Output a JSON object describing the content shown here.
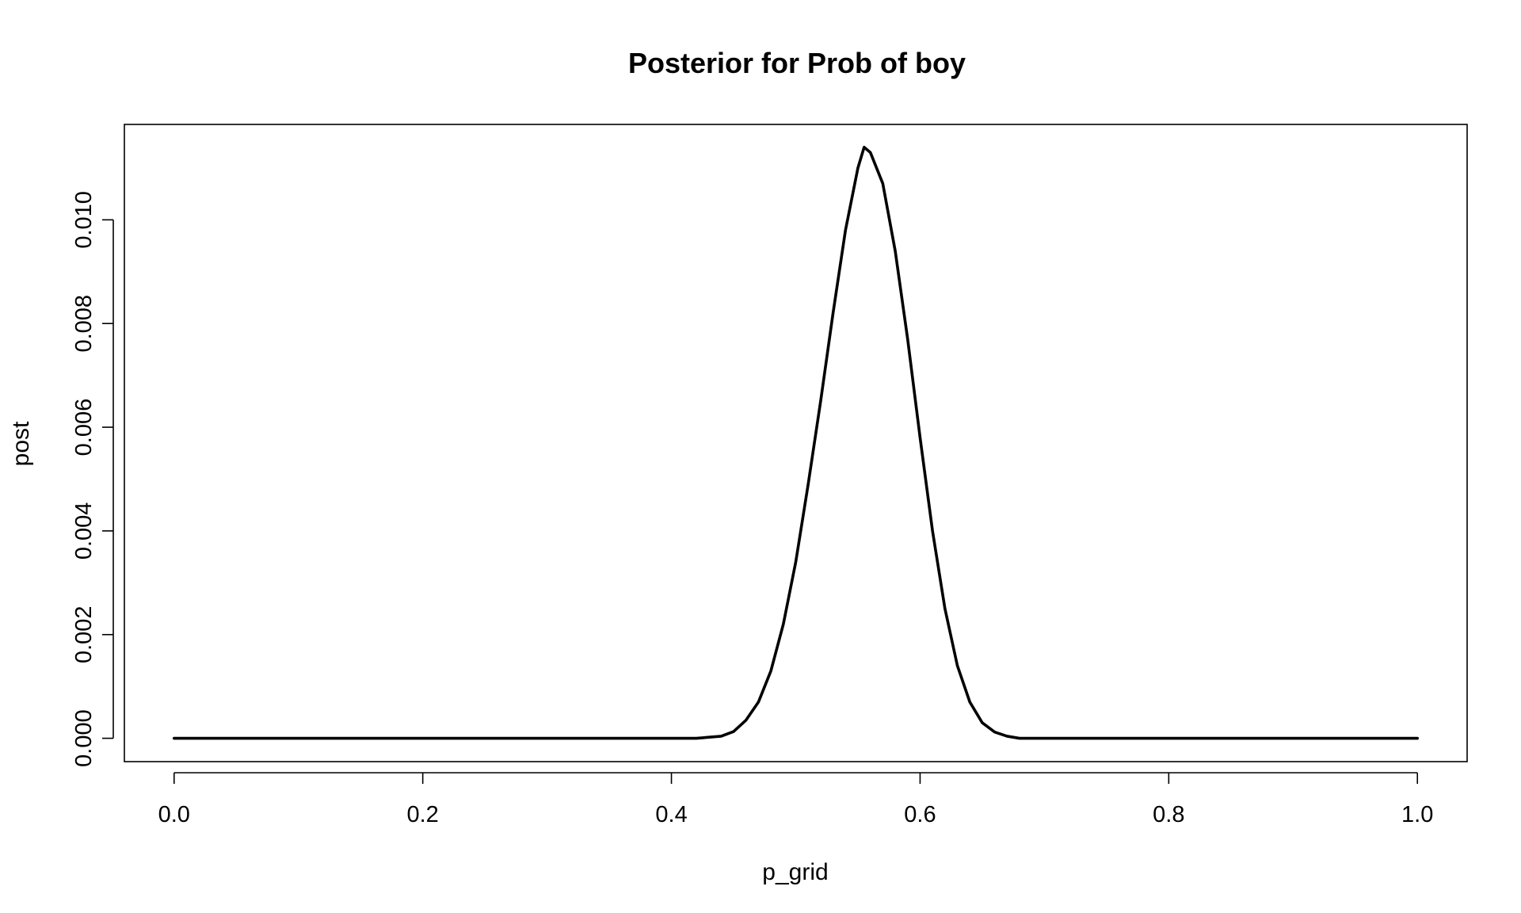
{
  "chart_data": {
    "type": "line",
    "title": "Posterior for Prob of boy",
    "xlabel": "p_grid",
    "ylabel": "post",
    "xlim": [
      -0.04,
      1.04
    ],
    "ylim": [
      -0.00045,
      0.01184
    ],
    "x_ticks": [
      0.0,
      0.2,
      0.4,
      0.6,
      0.8,
      1.0
    ],
    "x_tick_labels": [
      "0.0",
      "0.2",
      "0.4",
      "0.6",
      "0.8",
      "1.0"
    ],
    "y_ticks": [
      0.0,
      0.002,
      0.004,
      0.006,
      0.008,
      0.01
    ],
    "y_tick_labels": [
      "0.000",
      "0.002",
      "0.004",
      "0.006",
      "0.008",
      "0.010"
    ],
    "grid": false,
    "legend": "none",
    "series": [
      {
        "color": "#000000",
        "x": [
          0.0,
          0.05,
          0.1,
          0.15,
          0.2,
          0.25,
          0.3,
          0.35,
          0.4,
          0.42,
          0.44,
          0.45,
          0.46,
          0.47,
          0.48,
          0.49,
          0.5,
          0.51,
          0.52,
          0.53,
          0.54,
          0.55,
          0.555,
          0.56,
          0.57,
          0.58,
          0.59,
          0.6,
          0.61,
          0.62,
          0.63,
          0.64,
          0.65,
          0.66,
          0.67,
          0.68,
          0.7,
          0.75,
          0.8,
          0.85,
          0.9,
          0.95,
          1.0
        ],
        "y": [
          0.0,
          0.0,
          0.0,
          0.0,
          0.0,
          0.0,
          0.0,
          0.0,
          0.0,
          0.0,
          4e-05,
          0.00013,
          0.00035,
          0.0007,
          0.0013,
          0.0022,
          0.0034,
          0.0049,
          0.0065,
          0.0082,
          0.0098,
          0.011,
          0.0114,
          0.0113,
          0.0107,
          0.0094,
          0.0077,
          0.0058,
          0.004,
          0.0025,
          0.0014,
          0.0007,
          0.0003,
          0.00012,
          4e-05,
          0.0,
          0.0,
          0.0,
          0.0,
          0.0,
          0.0,
          0.0,
          0.0
        ]
      }
    ]
  }
}
